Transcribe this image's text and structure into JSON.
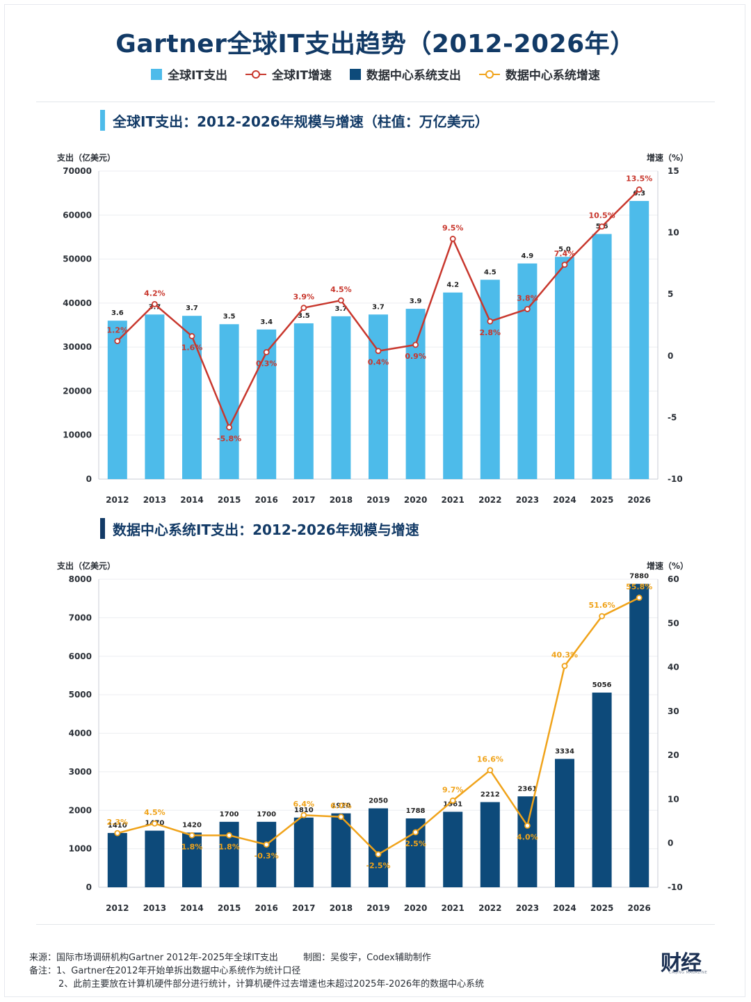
{
  "title": "Gartner全球IT支出趋势（2012-2026年）",
  "legend": [
    {
      "label": "全球IT支出",
      "kind": "bar",
      "color": "#4dbbea"
    },
    {
      "label": "全球IT增速",
      "kind": "line",
      "color": "#c8372d"
    },
    {
      "label": "数据中心系统支出",
      "kind": "bar",
      "color": "#0d4a7a"
    },
    {
      "label": "数据中心系统增速",
      "kind": "line",
      "color": "#f0a31a"
    }
  ],
  "sections": {
    "top": {
      "title": "全球IT支出：2012-2026年规模与增速（柱值：万亿美元）",
      "accent": "#4dbbea"
    },
    "bottom": {
      "title": "数据中心系统IT支出：2012-2026年规模与增速",
      "accent": "#123a66"
    }
  },
  "chart_data": [
    {
      "type": "bar",
      "title": "全球IT支出：2012-2026年规模与增速（柱值：万亿美元）",
      "ylabel": "支出（亿美元）",
      "y2label": "增速（%）",
      "categories": [
        "2012",
        "2013",
        "2014",
        "2015",
        "2016",
        "2017",
        "2018",
        "2019",
        "2020",
        "2021",
        "2022",
        "2023",
        "2024",
        "2025",
        "2026"
      ],
      "ylim": [
        0,
        70000
      ],
      "yticks": [
        0,
        10000,
        20000,
        30000,
        40000,
        50000,
        60000,
        70000
      ],
      "y2lim": [
        -10,
        15
      ],
      "y2ticks": [
        -10,
        -5,
        0,
        5,
        10,
        15
      ],
      "series": [
        {
          "name": "全球IT支出",
          "kind": "bar",
          "color": "#4dbbea",
          "values": [
            36000,
            37400,
            37100,
            35200,
            34000,
            35400,
            37000,
            37400,
            38700,
            42400,
            45300,
            49000,
            50500,
            55700,
            63200
          ],
          "labels": [
            "3.6",
            "3.7",
            "3.7",
            "3.5",
            "3.4",
            "3.5",
            "3.7",
            "3.7",
            "3.9",
            "4.2",
            "4.5",
            "4.9",
            "5.0",
            "5.6",
            "6.3"
          ]
        },
        {
          "name": "全球IT增速",
          "kind": "line",
          "color": "#c8372d",
          "axis": "right",
          "values": [
            1.2,
            4.2,
            1.6,
            -5.8,
            0.3,
            3.9,
            4.5,
            0.4,
            0.9,
            9.5,
            2.8,
            3.8,
            7.4,
            10.5,
            13.5
          ],
          "labels": [
            "1.2%",
            "4.2%",
            "1.6%",
            "-5.8%",
            "0.3%",
            "3.9%",
            "4.5%",
            "0.4%",
            "0.9%",
            "9.5%",
            "2.8%",
            "3.8%",
            "7.4%",
            "10.5%",
            "13.5%"
          ]
        }
      ]
    },
    {
      "type": "bar",
      "title": "数据中心系统IT支出：2012-2026年规模与增速",
      "ylabel": "支出（亿美元）",
      "y2label": "增速（%）",
      "categories": [
        "2012",
        "2013",
        "2014",
        "2015",
        "2016",
        "2017",
        "2018",
        "2019",
        "2020",
        "2021",
        "2022",
        "2023",
        "2024",
        "2025",
        "2026"
      ],
      "ylim": [
        0,
        8000
      ],
      "yticks": [
        0,
        1000,
        2000,
        3000,
        4000,
        5000,
        6000,
        7000,
        8000
      ],
      "y2lim": [
        -10,
        60
      ],
      "y2ticks": [
        -10,
        0,
        10,
        20,
        30,
        40,
        50,
        60
      ],
      "series": [
        {
          "name": "数据中心系统支出",
          "kind": "bar",
          "color": "#0d4a7a",
          "values": [
            1410,
            1470,
            1420,
            1700,
            1700,
            1810,
            1920,
            2050,
            1788,
            1961,
            2212,
            2361,
            3334,
            5056,
            7880
          ],
          "labels": [
            "1410",
            "1470",
            "1420",
            "1700",
            "1700",
            "1810",
            "1920",
            "2050",
            "1788",
            "1961",
            "2212",
            "2361",
            "3334",
            "5056",
            "7880"
          ]
        },
        {
          "name": "数据中心系统增速",
          "kind": "line",
          "color": "#f0a31a",
          "axis": "right",
          "values": [
            2.3,
            4.5,
            1.8,
            1.8,
            -0.3,
            6.4,
            6.0,
            -2.5,
            2.5,
            9.7,
            16.6,
            4.0,
            40.3,
            51.6,
            55.8
          ],
          "labels": [
            "2.3%",
            "4.5%",
            "1.8%",
            "1.8%",
            "-0.3%",
            "6.4%",
            "6.0%",
            "-2.5%",
            "2.5%",
            "9.7%",
            "16.6%",
            "4.0%",
            "40.3%",
            "51.6%",
            "55.8%"
          ]
        }
      ]
    }
  ],
  "footer": {
    "source": "来源：国际市场调研机构Gartner 2012年-2025年全球IT支出",
    "credit": "制图：吴俊宇，Codex辅助制作",
    "note1": "备注：1、Gartner在2012年开始单拆出数据中心系统作为统计口径",
    "note2": "2、此前主要放在计算机硬件部分进行统计，计算机硬件过去增速也未超过2025年-2026年的数据中心系统"
  },
  "logo": {
    "text": "财经",
    "sub": "CAIJING MAGAZINE"
  }
}
